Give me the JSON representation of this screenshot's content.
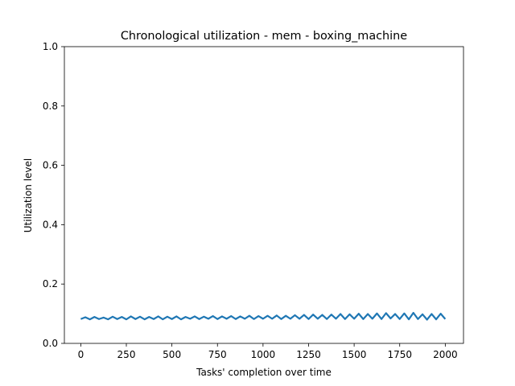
{
  "chart_data": {
    "type": "line",
    "title": "Chronological utilization - mem - boxing_machine",
    "xlabel": "Tasks' completion over time",
    "ylabel": "Utilization level",
    "xlim": [
      -90,
      2100
    ],
    "ylim": [
      0,
      1.0
    ],
    "x_ticks": [
      0,
      250,
      500,
      750,
      1000,
      1250,
      1500,
      1750,
      2000
    ],
    "y_ticks": [
      0.0,
      0.2,
      0.4,
      0.6,
      0.8,
      1.0
    ],
    "x_tick_labels": [
      "0",
      "250",
      "500",
      "750",
      "1000",
      "1250",
      "1500",
      "1750",
      "2000"
    ],
    "y_tick_labels": [
      "0.0",
      "0.2",
      "0.4",
      "0.6",
      "0.8",
      "1.0"
    ],
    "grid": false,
    "series": [
      {
        "color": "#1f77b4",
        "x": [
          0,
          25,
          50,
          75,
          100,
          125,
          150,
          175,
          200,
          225,
          250,
          275,
          300,
          325,
          350,
          375,
          400,
          425,
          450,
          475,
          500,
          525,
          550,
          575,
          600,
          625,
          650,
          675,
          700,
          725,
          750,
          775,
          800,
          825,
          850,
          875,
          900,
          925,
          950,
          975,
          1000,
          1025,
          1050,
          1075,
          1100,
          1125,
          1150,
          1175,
          1200,
          1225,
          1250,
          1275,
          1300,
          1325,
          1350,
          1375,
          1400,
          1425,
          1450,
          1475,
          1500,
          1525,
          1550,
          1575,
          1600,
          1625,
          1650,
          1675,
          1700,
          1725,
          1750,
          1775,
          1800,
          1825,
          1850,
          1875,
          1900,
          1925,
          1950,
          1975,
          2000
        ],
        "y": [
          0.082,
          0.088,
          0.081,
          0.089,
          0.082,
          0.087,
          0.081,
          0.09,
          0.082,
          0.089,
          0.081,
          0.091,
          0.082,
          0.09,
          0.081,
          0.089,
          0.082,
          0.091,
          0.081,
          0.09,
          0.082,
          0.091,
          0.081,
          0.089,
          0.083,
          0.091,
          0.082,
          0.09,
          0.083,
          0.092,
          0.082,
          0.091,
          0.083,
          0.092,
          0.082,
          0.091,
          0.083,
          0.093,
          0.082,
          0.092,
          0.083,
          0.093,
          0.083,
          0.094,
          0.082,
          0.093,
          0.083,
          0.095,
          0.083,
          0.096,
          0.082,
          0.097,
          0.083,
          0.096,
          0.082,
          0.097,
          0.083,
          0.099,
          0.082,
          0.098,
          0.083,
          0.1,
          0.082,
          0.099,
          0.083,
          0.101,
          0.082,
          0.102,
          0.084,
          0.099,
          0.082,
          0.101,
          0.081,
          0.103,
          0.082,
          0.098,
          0.08,
          0.099,
          0.081,
          0.1,
          0.082
        ]
      }
    ]
  }
}
